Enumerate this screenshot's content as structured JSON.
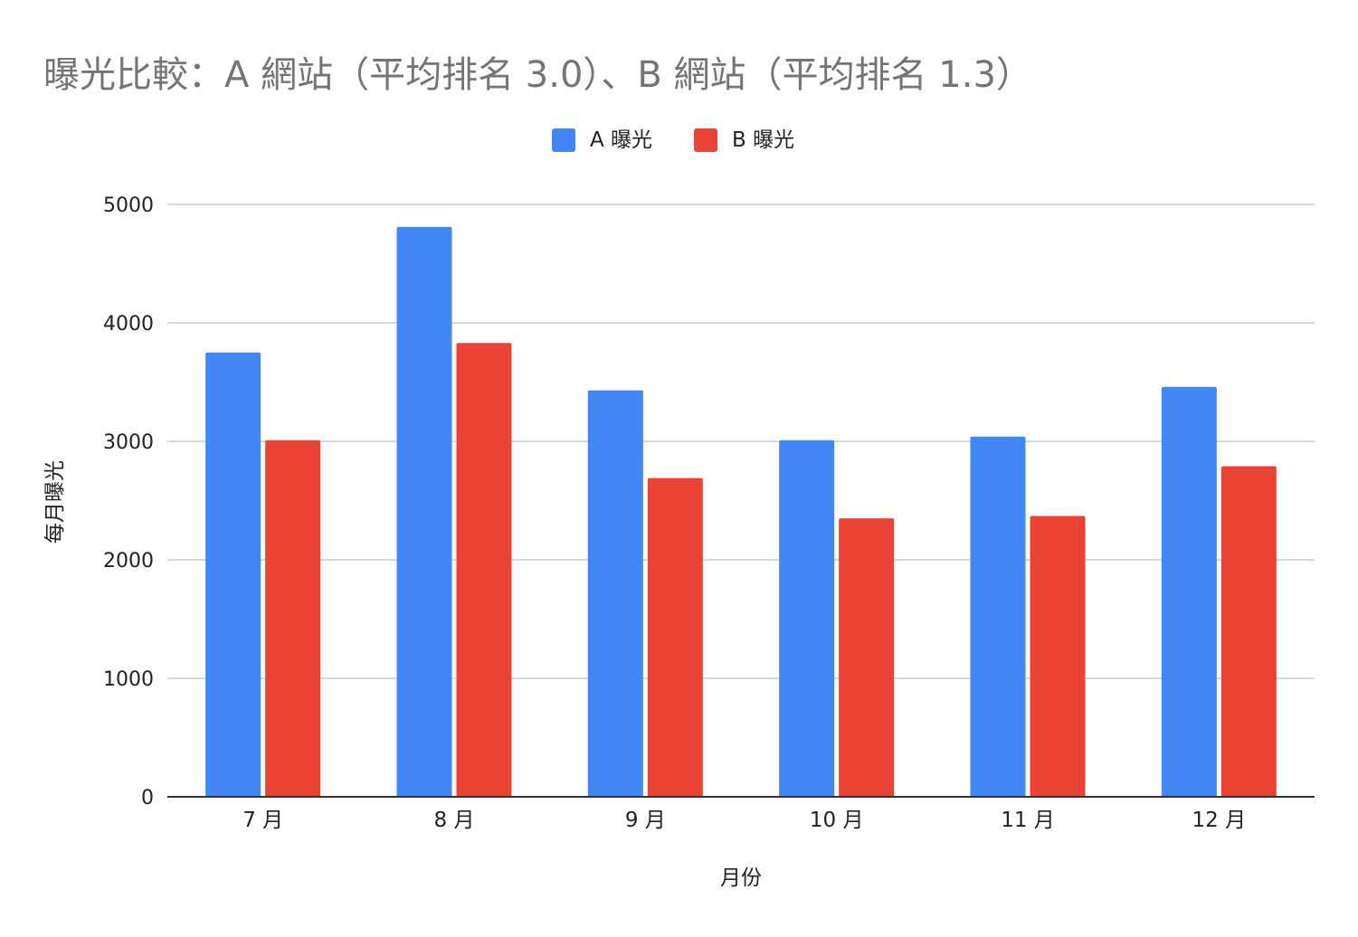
{
  "colors": {
    "series_a": "#4285f4",
    "series_b": "#ea4335",
    "grid": "#cccccc",
    "axis": "#333333",
    "title": "#757575",
    "text": "#222222"
  },
  "chart_data": {
    "type": "bar",
    "title": "曝光比較：A 網站（平均排名 3.0）、B 網站（平均排名 1.3）",
    "xlabel": "月份",
    "ylabel": "每月曝光",
    "categories": [
      "7 月",
      "8 月",
      "9 月",
      "10 月",
      "11 月",
      "12 月"
    ],
    "series": [
      {
        "name": "A 曝光",
        "values": [
          3750,
          4810,
          3430,
          3010,
          3040,
          3460
        ]
      },
      {
        "name": "B 曝光",
        "values": [
          3010,
          3830,
          2690,
          2350,
          2370,
          2790
        ]
      }
    ],
    "ylim": [
      0,
      5000
    ],
    "yticks": [
      "0",
      "1000",
      "2000",
      "3000",
      "4000",
      "5000"
    ],
    "grid": true,
    "legend_position": "top-center"
  }
}
